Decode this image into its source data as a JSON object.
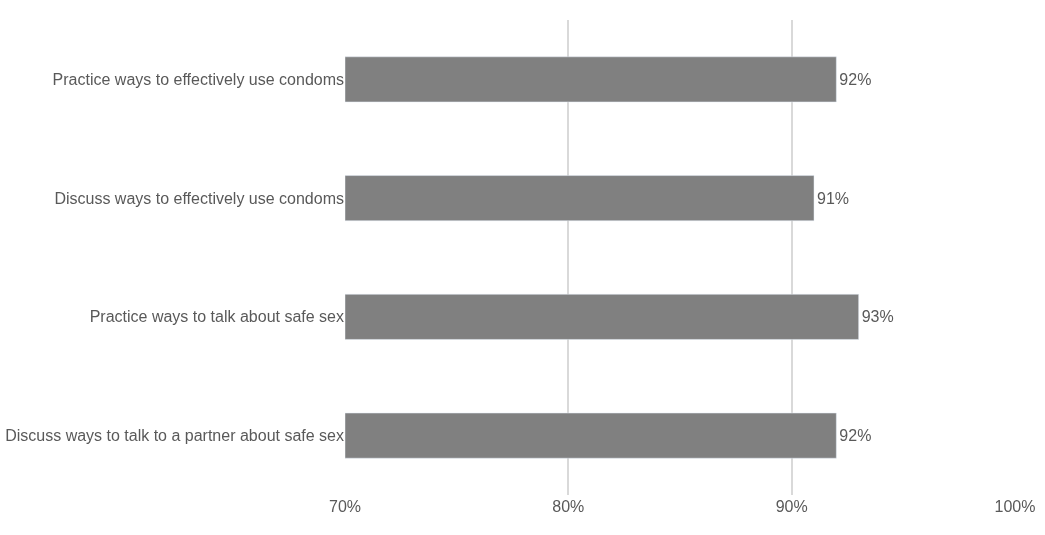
{
  "chart_data": {
    "type": "bar",
    "orientation": "horizontal",
    "categories": [
      "Practice ways to effectively use condoms",
      "Discuss ways to effectively use condoms",
      "Practice ways to talk about safe sex",
      "Discuss ways to talk to a partner about safe sex"
    ],
    "values": [
      92,
      91,
      93,
      92
    ],
    "value_labels": [
      "92%",
      "91%",
      "93%",
      "92%"
    ],
    "color": "#808080",
    "xlim": [
      70,
      100
    ],
    "xticks": [
      {
        "value": 70,
        "label": "70%"
      },
      {
        "value": 80,
        "label": "80%"
      },
      {
        "value": 90,
        "label": "90%"
      },
      {
        "value": 100,
        "label": "100%"
      }
    ],
    "grid": "x",
    "legend": false
  }
}
